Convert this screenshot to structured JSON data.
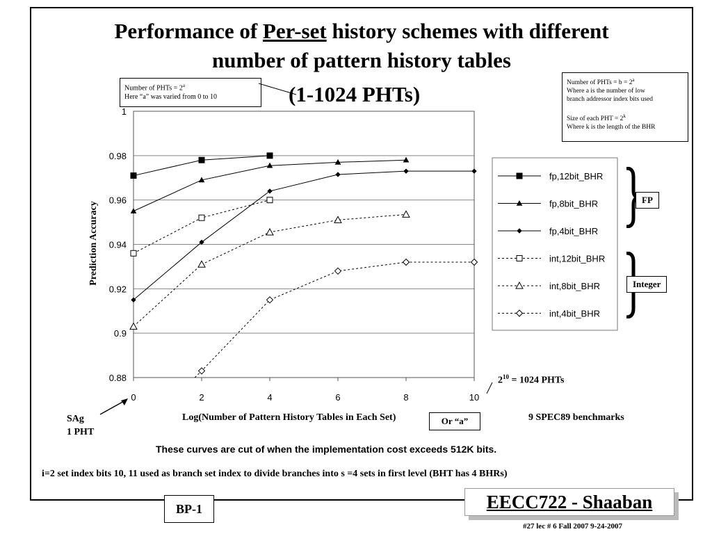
{
  "slide": {
    "title_prefix": "Performance of ",
    "title_underlined": "Per-set",
    "title_suffix": " history schemes with different",
    "title_line2": "number of pattern history tables",
    "subtitle": "(1-1024 PHTs)",
    "note_left_line1": "Number of PHTs = 2",
    "note_left_sup": "a",
    "note_left_line2": "Here “a” was varied from 0 to 10",
    "note_right_line1": "Number of PHTs = b = 2",
    "note_right_sup1": "a",
    "note_right_line2": "Where a is the number of low",
    "note_right_line3": "branch addressor index bits used",
    "note_right_line4": "Size of each PHT = 2",
    "note_right_sup2": "k",
    "note_right_line5": "Where k is the length of the BHR",
    "fp_label": "FP",
    "integer_label": "Integer",
    "annot_1024_base": "2",
    "annot_1024_sup": "10",
    "annot_1024_rest": " = 1024 PHTs",
    "sag_line1": "SAg",
    "sag_line2": "1 PHT",
    "or_a": "Or “a”",
    "benchmarks": "9 SPEC89 benchmarks",
    "cut_note": "These curves are cut of when the implementation cost exceeds 512K bits.",
    "index_note": "i=2 set index bits 10, 11 used as branch set index to divide branches into s =4  sets  in first level (BHT has 4 BHRs)",
    "footer_left": "BP-1",
    "footer_brand": "EECC722 - Shaaban",
    "footer_lecture": "#27   lec # 6   Fall 2007   9-24-2007"
  },
  "chart_data": {
    "type": "line",
    "xlabel": "Log(Number of Pattern History Tables in Each Set)",
    "ylabel": "Prediction Accuracy",
    "xlim": [
      0,
      10
    ],
    "ylim": [
      0.88,
      1.0
    ],
    "x_ticks": [
      0,
      2,
      4,
      6,
      8,
      10
    ],
    "y_ticks": [
      0.88,
      0.9,
      0.92,
      0.94,
      0.96,
      0.98,
      1.0
    ],
    "x_tick_labels": [
      "0",
      "2",
      "4",
      "6",
      "8",
      "10"
    ],
    "y_tick_labels": [
      "0.88",
      "0.9",
      "0.92",
      "0.94",
      "0.96",
      "0.98",
      "1"
    ],
    "grid": "horizontal",
    "legend_position": "right",
    "series": [
      {
        "name": "fp,12bit_BHR",
        "marker": "square-filled",
        "dash": false,
        "x": [
          0,
          2,
          4
        ],
        "y": [
          0.971,
          0.978,
          0.98
        ]
      },
      {
        "name": "fp,8bit_BHR",
        "marker": "triangle-filled",
        "dash": false,
        "x": [
          0,
          2,
          4,
          6,
          8
        ],
        "y": [
          0.955,
          0.969,
          0.9755,
          0.977,
          0.978
        ]
      },
      {
        "name": "fp,4bit_BHR",
        "marker": "diamond-filled",
        "dash": false,
        "x": [
          0,
          2,
          4,
          6,
          8,
          10
        ],
        "y": [
          0.915,
          0.941,
          0.964,
          0.9715,
          0.973,
          0.973
        ]
      },
      {
        "name": "int,12bit_BHR",
        "marker": "square-open",
        "dash": true,
        "x": [
          0,
          2,
          4
        ],
        "y": [
          0.936,
          0.952,
          0.96
        ]
      },
      {
        "name": "int,8bit_BHR",
        "marker": "triangle-open",
        "dash": true,
        "x": [
          0,
          2,
          4,
          6,
          8
        ],
        "y": [
          0.903,
          0.931,
          0.9455,
          0.951,
          0.9535
        ]
      },
      {
        "name": "int,4bit_BHR",
        "marker": "diamond-open",
        "dash": true,
        "x": [
          1.8,
          2,
          4,
          6,
          8,
          10
        ],
        "y": [
          0.88,
          0.883,
          0.915,
          0.928,
          0.932,
          0.932
        ]
      }
    ]
  }
}
